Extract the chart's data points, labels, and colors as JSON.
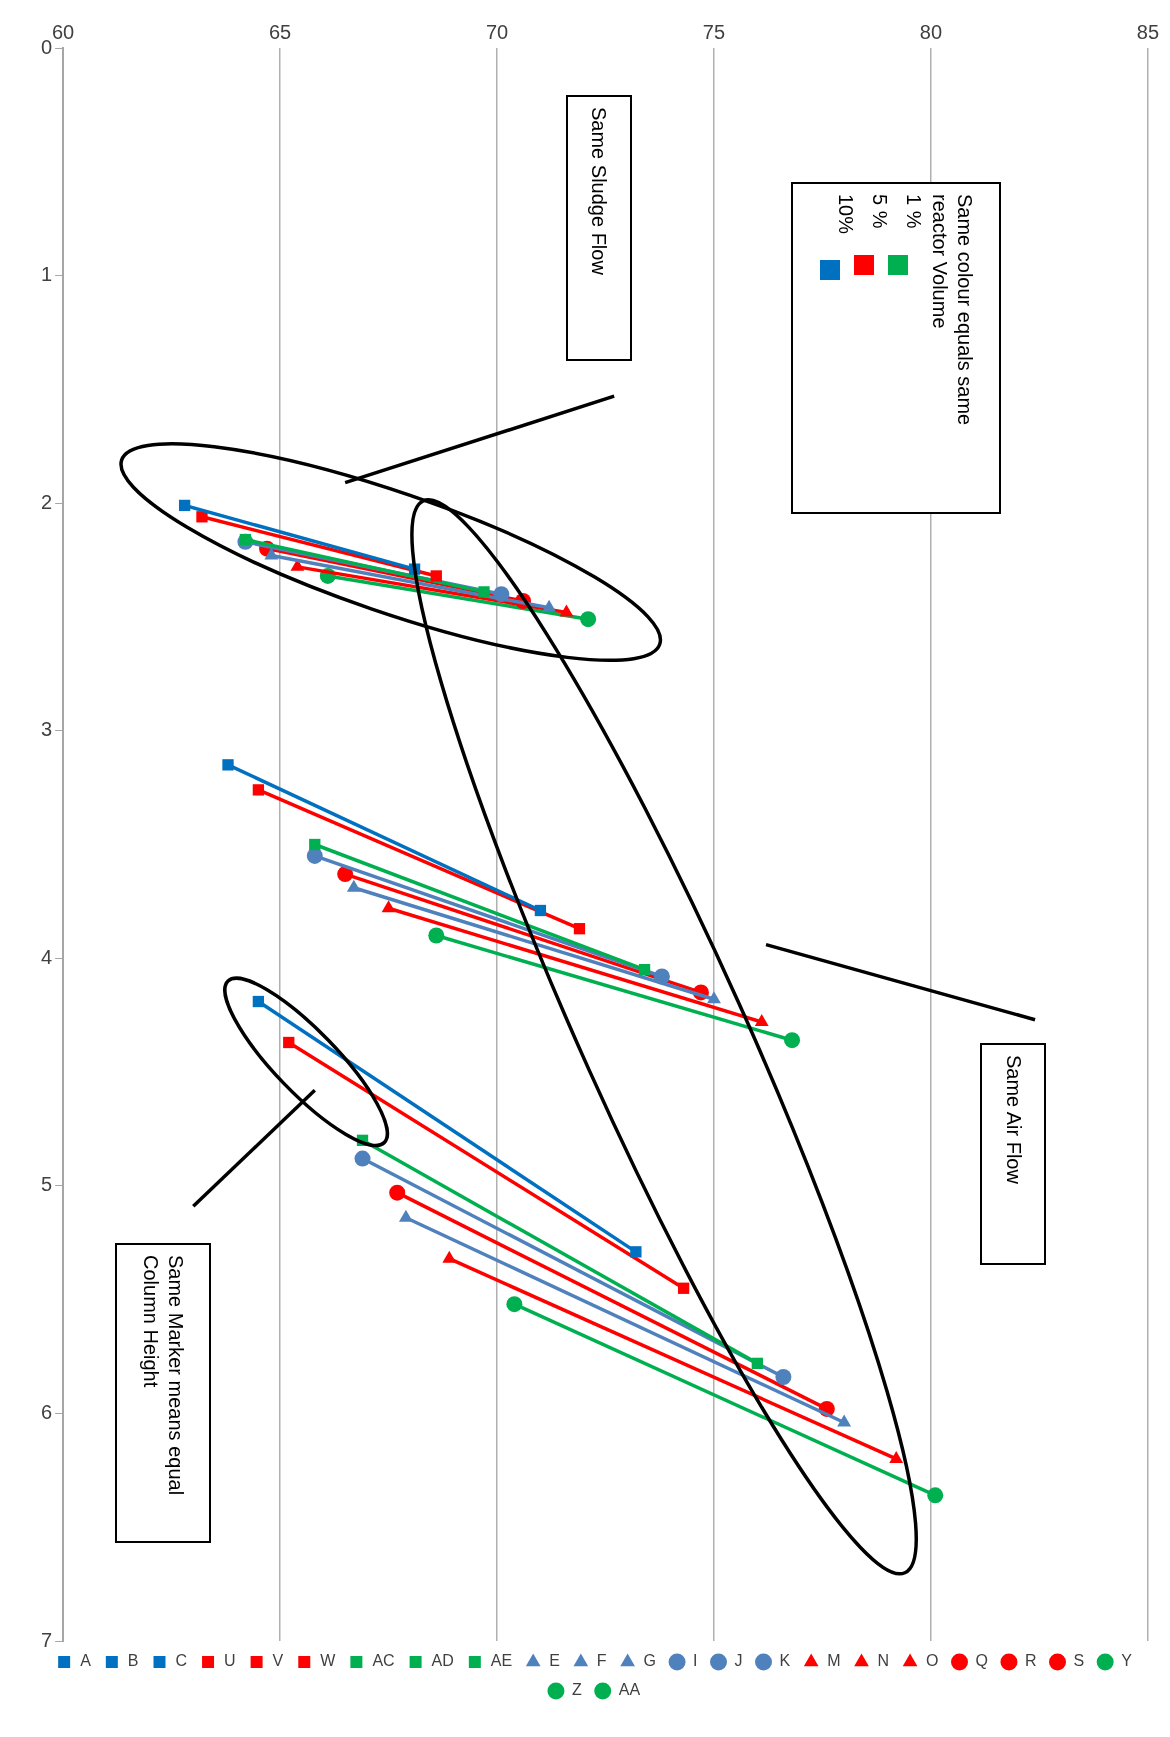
{
  "chart_data": {
    "type": "line",
    "xlim": [
      60,
      85
    ],
    "xticks": [
      60,
      65,
      70,
      75,
      80,
      85
    ],
    "ylim": [
      7,
      0
    ],
    "yticks": [
      0,
      1,
      2,
      3,
      4,
      5,
      6,
      7
    ],
    "grid": "x",
    "legend": "bottom",
    "annotations": [
      "Same colour equals same reactor Volume",
      "1 %",
      "5 %",
      "10%",
      "Same Sludge Flow",
      "Same Air Flow",
      "Same Marker means equal Column Height"
    ],
    "series": [
      {
        "name": "A",
        "color": "#0070c0",
        "marker": "square",
        "x": [
          62.8,
          68.1
        ],
        "values": [
          2.01,
          2.29
        ]
      },
      {
        "name": "B",
        "color": "#0070c0",
        "marker": "square",
        "x": [
          63.8,
          71.0
        ],
        "values": [
          3.15,
          3.79
        ]
      },
      {
        "name": "C",
        "color": "#0070c0",
        "marker": "square",
        "x": [
          64.5,
          73.2
        ],
        "values": [
          4.19,
          5.29
        ]
      },
      {
        "name": "E",
        "color": "#4f81bd",
        "marker": "triangle",
        "x": [
          64.8,
          71.2
        ],
        "values": [
          2.23,
          2.46
        ]
      },
      {
        "name": "F",
        "color": "#4f81bd",
        "marker": "triangle",
        "x": [
          66.7,
          75.0
        ],
        "values": [
          3.69,
          4.18
        ]
      },
      {
        "name": "G",
        "color": "#4f81bd",
        "marker": "triangle",
        "x": [
          67.9,
          78.0
        ],
        "values": [
          5.14,
          6.04
        ]
      },
      {
        "name": "I",
        "color": "#4f81bd",
        "marker": "circle",
        "x": [
          64.2,
          70.1
        ],
        "values": [
          2.17,
          2.4
        ]
      },
      {
        "name": "J",
        "color": "#4f81bd",
        "marker": "circle",
        "x": [
          65.8,
          73.8
        ],
        "values": [
          3.55,
          4.08
        ]
      },
      {
        "name": "K",
        "color": "#4f81bd",
        "marker": "circle",
        "x": [
          66.9,
          76.6
        ],
        "values": [
          4.88,
          5.84
        ]
      },
      {
        "name": "M",
        "color": "#ff0000",
        "marker": "triangle",
        "x": [
          65.4,
          71.6
        ],
        "values": [
          2.28,
          2.48
        ]
      },
      {
        "name": "N",
        "color": "#ff0000",
        "marker": "triangle",
        "x": [
          67.5,
          76.1
        ],
        "values": [
          3.78,
          4.28
        ]
      },
      {
        "name": "O",
        "color": "#ff0000",
        "marker": "triangle",
        "x": [
          68.9,
          79.2
        ],
        "values": [
          5.32,
          6.2
        ]
      },
      {
        "name": "Q",
        "color": "#ff0000",
        "marker": "circle",
        "x": [
          64.7,
          70.6
        ],
        "values": [
          2.2,
          2.43
        ]
      },
      {
        "name": "R",
        "color": "#ff0000",
        "marker": "circle",
        "x": [
          66.5,
          74.7
        ],
        "values": [
          3.63,
          4.15
        ]
      },
      {
        "name": "S",
        "color": "#ff0000",
        "marker": "circle",
        "x": [
          67.7,
          77.6
        ],
        "values": [
          5.03,
          5.98
        ]
      },
      {
        "name": "U",
        "color": "#ff0000",
        "marker": "square",
        "x": [
          63.2,
          68.6
        ],
        "values": [
          2.06,
          2.32
        ]
      },
      {
        "name": "V",
        "color": "#ff0000",
        "marker": "square",
        "x": [
          64.5,
          71.9
        ],
        "values": [
          3.26,
          3.87
        ]
      },
      {
        "name": "W",
        "color": "#ff0000",
        "marker": "square",
        "x": [
          65.2,
          74.3
        ],
        "values": [
          4.37,
          5.45
        ]
      },
      {
        "name": "Y",
        "color": "#00b050",
        "marker": "circle",
        "x": [
          66.1,
          72.1
        ],
        "values": [
          2.32,
          2.51
        ]
      },
      {
        "name": "Z",
        "color": "#00b050",
        "marker": "circle",
        "x": [
          68.6,
          76.8
        ],
        "values": [
          3.9,
          4.36
        ]
      },
      {
        "name": "AA",
        "color": "#00b050",
        "marker": "circle",
        "x": [
          70.4,
          80.1
        ],
        "values": [
          5.52,
          6.36
        ]
      },
      {
        "name": "AC",
        "color": "#00b050",
        "marker": "square",
        "x": [
          64.2,
          69.7
        ],
        "values": [
          2.16,
          2.39
        ]
      },
      {
        "name": "AD",
        "color": "#00b050",
        "marker": "square",
        "x": [
          65.8,
          73.4
        ],
        "values": [
          3.5,
          4.05
        ]
      },
      {
        "name": "AE",
        "color": "#00b050",
        "marker": "square",
        "x": [
          66.9,
          76.0
        ],
        "values": [
          4.8,
          5.78
        ]
      }
    ]
  }
}
